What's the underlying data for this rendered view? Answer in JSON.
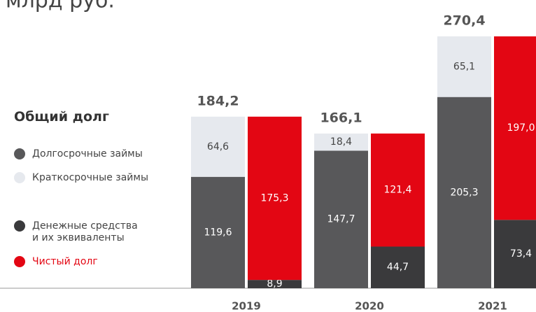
{
  "chart_data": {
    "type": "bar",
    "subtitle": "млрд руб.",
    "title": "Общий долг",
    "categories": [
      "2019",
      "2020",
      "2021"
    ],
    "totals": [
      184.2,
      166.1,
      270.4
    ],
    "totals_labels": [
      "184,2",
      "166,1",
      "270,4"
    ],
    "series": [
      {
        "name": "Долгосрочные займы",
        "color": "#58585a",
        "stack": 0,
        "values": [
          119.6,
          147.7,
          205.3
        ],
        "value_labels": [
          "119,6",
          "147,7",
          "205,3"
        ]
      },
      {
        "name": "Краткосрочные займы",
        "color": "#e6e9ee",
        "stack": 0,
        "values": [
          64.6,
          18.4,
          65.1
        ],
        "value_labels": [
          "64,6",
          "18,4",
          "65,1"
        ]
      },
      {
        "name": "Денежные средства\nи их эквиваленты",
        "color": "#3a3a3c",
        "stack": 1,
        "values": [
          8.9,
          44.7,
          73.4
        ],
        "value_labels": [
          "8,9",
          "44,7",
          "73,4"
        ]
      },
      {
        "name": "Чистый долг",
        "color": "#e30613",
        "stack": 1,
        "values": [
          175.3,
          121.4,
          197.0
        ],
        "value_labels": [
          "175,3",
          "121,4",
          "197,0"
        ]
      }
    ]
  }
}
